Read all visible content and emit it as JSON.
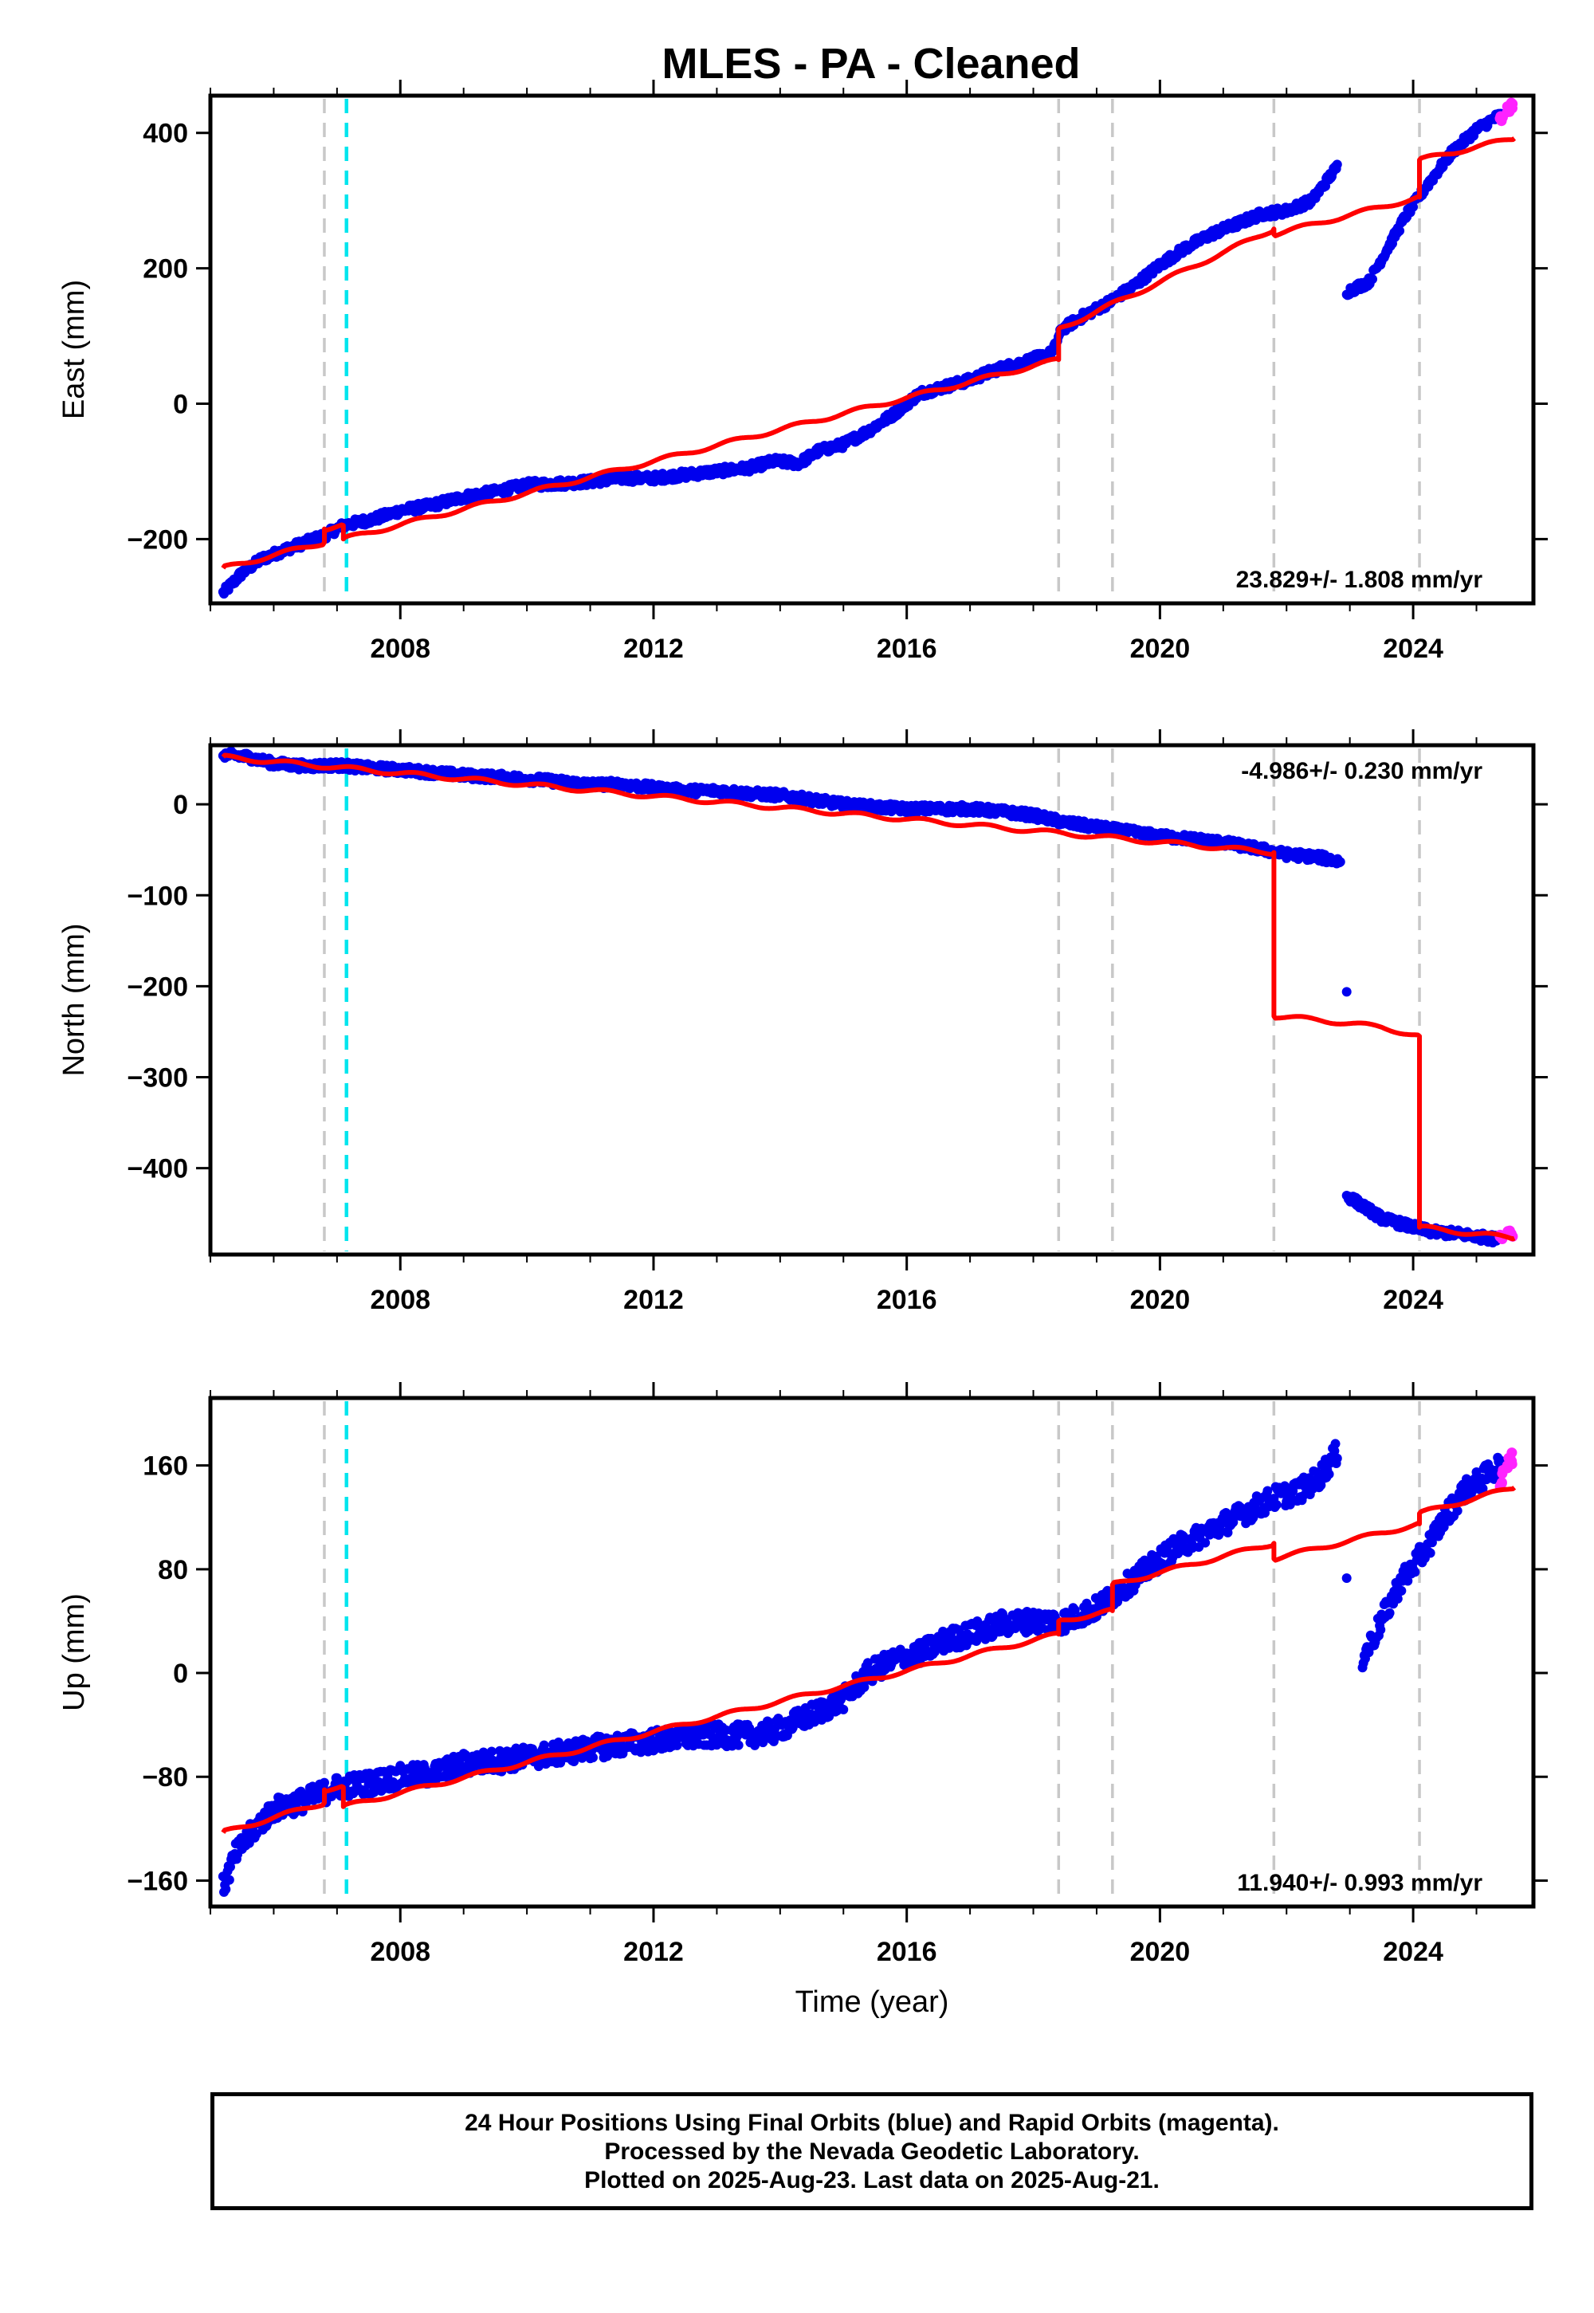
{
  "title": "MLES  - PA - Cleaned",
  "colors": {
    "final_orbits": "#0000ee",
    "rapid_orbits": "#ff22ff",
    "model": "#ff0000",
    "antenna_change": "#c8c8c8",
    "equipment_change": "#00e5ee"
  },
  "chart_data": [
    {
      "type": "scatter",
      "ylabel": "East (mm)",
      "xlim": [
        2005.0,
        2025.9
      ],
      "ylim": [
        -295,
        455
      ],
      "yticks": [
        -200,
        0,
        200,
        400
      ],
      "ytick_labels": [
        "−200",
        "0",
        "200",
        "400"
      ],
      "xticks": [
        2008,
        2012,
        2016,
        2020,
        2024
      ],
      "xtick_labels": [
        "2008",
        "2012",
        "2016",
        "2020",
        "2024"
      ],
      "rate_text": "23.829+/- 1.808 mm/yr",
      "rate_position": "bottom-right",
      "series": [
        {
          "name": "Final Orbits",
          "x": [
            2005.2,
            2005.5,
            2005.8,
            2006.2,
            2006.8,
            2007.1,
            2007.6,
            2008.0,
            2008.5,
            2009.0,
            2009.5,
            2010.0,
            2010.5,
            2011.0,
            2011.5,
            2012.0,
            2012.5,
            2013.0,
            2013.5,
            2013.9,
            2014.3,
            2014.6,
            2015.0,
            2015.4,
            2015.8,
            2016.2,
            2016.6,
            2017.0,
            2017.4,
            2017.8,
            2018.3,
            2018.45,
            2018.8,
            2019.2,
            2019.6,
            2020.0,
            2020.4,
            2020.8,
            2021.2,
            2021.6,
            2022.0,
            2022.4,
            2022.8,
            2022.95,
            2023.3,
            2023.6,
            2023.9,
            2024.2,
            2024.6,
            2025.0,
            2025.35
          ],
          "y": [
            -280,
            -250,
            -230,
            -215,
            -195,
            -180,
            -170,
            -158,
            -150,
            -138,
            -130,
            -120,
            -118,
            -115,
            -110,
            -110,
            -105,
            -100,
            -95,
            -85,
            -88,
            -70,
            -60,
            -40,
            -15,
            15,
            25,
            35,
            50,
            60,
            75,
            110,
            130,
            150,
            175,
            205,
            230,
            250,
            265,
            280,
            285,
            300,
            350,
            165,
            180,
            230,
            280,
            320,
            370,
            405,
            425
          ]
        },
        {
          "name": "Rapid Orbits",
          "x": [
            2025.4,
            2025.5,
            2025.55
          ],
          "y": [
            420,
            435,
            440
          ]
        },
        {
          "name": "Model",
          "x": [
            2005.2,
            2006.8,
            2006.8,
            2007.1,
            2007.1,
            2018.4,
            2018.4,
            2021.8,
            2021.8,
            2024.1,
            2024.1,
            2025.6
          ],
          "y": [
            -243,
            -205,
            -185,
            -180,
            -200,
            65,
            110,
            258,
            250,
            305,
            360,
            392
          ]
        }
      ],
      "vertical_markers": [
        {
          "x": 2006.8,
          "kind": "antenna_change"
        },
        {
          "x": 2007.15,
          "kind": "equipment_change"
        },
        {
          "x": 2018.4,
          "kind": "antenna_change"
        },
        {
          "x": 2019.25,
          "kind": "antenna_change"
        },
        {
          "x": 2021.8,
          "kind": "antenna_change"
        },
        {
          "x": 2024.1,
          "kind": "antenna_change"
        }
      ]
    },
    {
      "type": "scatter",
      "ylabel": "North (mm)",
      "xlim": [
        2005.0,
        2025.9
      ],
      "ylim": [
        -495,
        65
      ],
      "yticks": [
        -400,
        -300,
        -200,
        -100,
        0
      ],
      "ytick_labels": [
        "−400",
        "−300",
        "−200",
        "−100",
        "0"
      ],
      "xticks": [
        2008,
        2012,
        2016,
        2020,
        2024
      ],
      "xtick_labels": [
        "2008",
        "2012",
        "2016",
        "2020",
        "2024"
      ],
      "rate_text": "-4.986+/- 0.230 mm/yr",
      "rate_position": "top-right",
      "series": [
        {
          "name": "Final Orbits",
          "x": [
            2005.2,
            2005.6,
            2006.0,
            2006.5,
            2007.0,
            2007.5,
            2008.0,
            2008.5,
            2009.0,
            2009.5,
            2010.0,
            2010.5,
            2011.0,
            2011.5,
            2012.0,
            2012.5,
            2013.0,
            2013.5,
            2014.0,
            2014.5,
            2015.0,
            2015.5,
            2016.0,
            2016.5,
            2017.0,
            2017.5,
            2018.0,
            2018.5,
            2019.0,
            2019.5,
            2020.0,
            2020.5,
            2021.0,
            2021.5,
            2022.0,
            2022.5,
            2022.85,
            2022.95,
            2022.95,
            2023.5,
            2024.0,
            2024.3,
            2024.7,
            2025.0,
            2025.3
          ],
          "y": [
            55,
            52,
            45,
            42,
            43,
            40,
            38,
            35,
            32,
            30,
            28,
            25,
            22,
            22,
            18,
            15,
            15,
            12,
            10,
            5,
            0,
            -3,
            -5,
            -5,
            -5,
            -8,
            -12,
            -20,
            -25,
            -30,
            -35,
            -38,
            -42,
            -48,
            -55,
            -58,
            -63,
            -208,
            -430,
            -455,
            -465,
            -470,
            -472,
            -475,
            -478
          ]
        },
        {
          "name": "Rapid Orbits",
          "x": [
            2025.4,
            2025.5,
            2025.55
          ],
          "y": [
            -475,
            -470,
            -472
          ]
        },
        {
          "name": "Model",
          "x": [
            2005.2,
            2021.8,
            2021.8,
            2022.5,
            2023.5,
            2024.1,
            2024.1,
            2025.6
          ],
          "y": [
            52,
            -53,
            -233,
            -237,
            -245,
            -255,
            -465,
            -477
          ]
        }
      ],
      "vertical_markers": [
        {
          "x": 2006.8,
          "kind": "antenna_change"
        },
        {
          "x": 2007.15,
          "kind": "equipment_change"
        },
        {
          "x": 2018.4,
          "kind": "antenna_change"
        },
        {
          "x": 2019.25,
          "kind": "antenna_change"
        },
        {
          "x": 2021.8,
          "kind": "antenna_change"
        },
        {
          "x": 2024.1,
          "kind": "antenna_change"
        }
      ]
    },
    {
      "type": "scatter",
      "ylabel": "Up (mm)",
      "xlim": [
        2005.0,
        2025.9
      ],
      "ylim": [
        -180,
        212
      ],
      "yticks": [
        -160,
        -80,
        0,
        80,
        160
      ],
      "ytick_labels": [
        "−160",
        "−80",
        "0",
        "80",
        "160"
      ],
      "xticks": [
        2008,
        2012,
        2016,
        2020,
        2024
      ],
      "xtick_labels": [
        "2008",
        "2012",
        "2016",
        "2020",
        "2024"
      ],
      "xlabel": "Time (year)",
      "rate_text": "11.940+/- 0.993 mm/yr",
      "rate_position": "bottom-right",
      "series": [
        {
          "name": "Final Orbits",
          "x": [
            2005.2,
            2005.4,
            2005.7,
            2006.0,
            2006.5,
            2007.0,
            2007.5,
            2008.0,
            2008.5,
            2009.0,
            2009.5,
            2010.0,
            2010.5,
            2011.0,
            2011.5,
            2012.0,
            2012.5,
            2013.0,
            2013.5,
            2013.9,
            2014.6,
            2015.0,
            2015.4,
            2015.8,
            2016.2,
            2016.6,
            2017.0,
            2017.5,
            2018.0,
            2018.5,
            2019.0,
            2019.4,
            2019.8,
            2020.2,
            2020.6,
            2021.0,
            2021.4,
            2021.8,
            2022.2,
            2022.5,
            2022.8,
            2022.95,
            2023.2,
            2023.5,
            2023.8,
            2024.2,
            2024.5,
            2024.8,
            2025.1,
            2025.35
          ],
          "y": [
            -165,
            -140,
            -120,
            -105,
            -98,
            -88,
            -85,
            -80,
            -78,
            -70,
            -68,
            -65,
            -62,
            -58,
            -55,
            -52,
            -50,
            -48,
            -48,
            -45,
            -30,
            -20,
            0,
            10,
            15,
            25,
            30,
            38,
            40,
            40,
            50,
            65,
            80,
            95,
            105,
            115,
            125,
            135,
            140,
            150,
            170,
            80,
            10,
            40,
            70,
            95,
            120,
            140,
            150,
            160
          ]
        },
        {
          "name": "Rapid Orbits",
          "x": [
            2025.4,
            2025.5,
            2025.55
          ],
          "y": [
            150,
            160,
            165
          ]
        },
        {
          "name": "Model",
          "x": [
            2005.2,
            2006.8,
            2006.8,
            2007.1,
            2007.1,
            2018.4,
            2018.4,
            2019.25,
            2019.25,
            2021.8,
            2021.8,
            2024.1,
            2024.1,
            2025.6
          ],
          "y": [
            -123,
            -100,
            -90,
            -88,
            -103,
            30,
            40,
            48,
            68,
            100,
            88,
            115,
            123,
            143
          ]
        }
      ],
      "vertical_markers": [
        {
          "x": 2006.8,
          "kind": "antenna_change"
        },
        {
          "x": 2007.15,
          "kind": "equipment_change"
        },
        {
          "x": 2018.4,
          "kind": "antenna_change"
        },
        {
          "x": 2019.25,
          "kind": "antenna_change"
        },
        {
          "x": 2021.8,
          "kind": "antenna_change"
        },
        {
          "x": 2024.1,
          "kind": "antenna_change"
        }
      ]
    }
  ],
  "footer": {
    "line1": "24 Hour Positions Using Final Orbits (blue) and Rapid Orbits (magenta).",
    "line2": "Processed by the Nevada Geodetic Laboratory.",
    "line3": "Plotted on 2025-Aug-23. Last data on 2025-Aug-21."
  }
}
